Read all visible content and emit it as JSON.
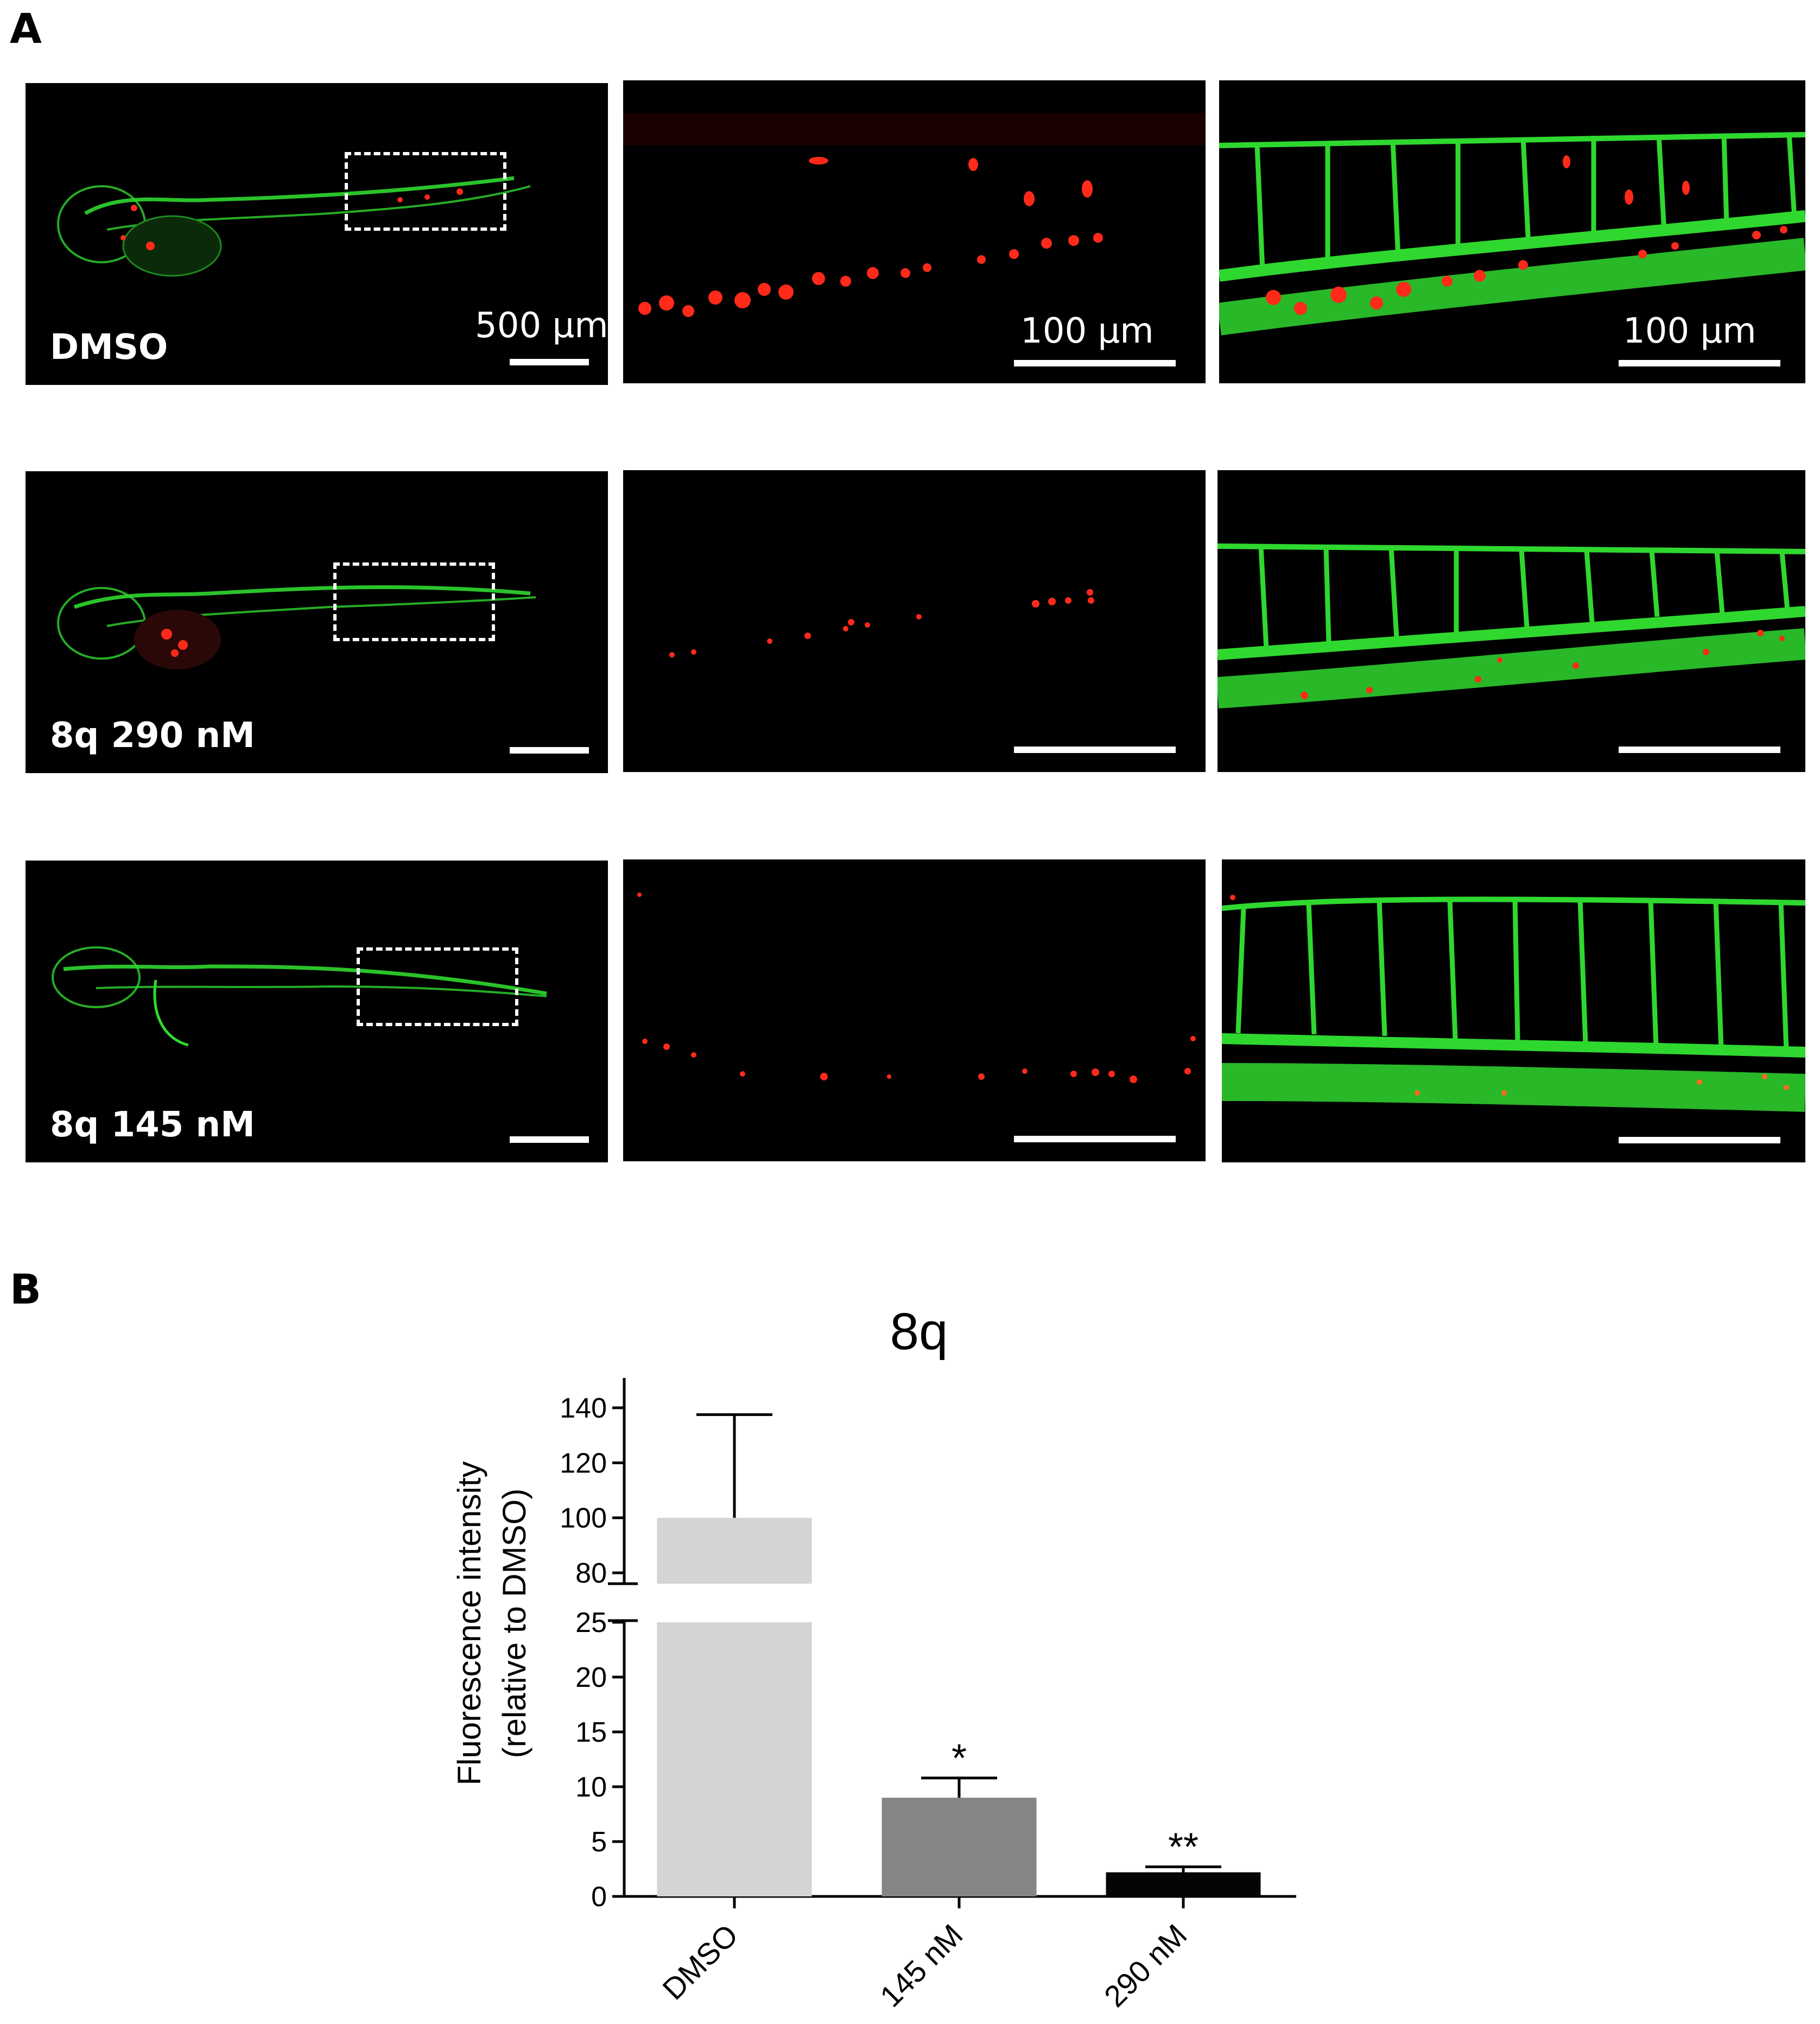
{
  "figure": {
    "panel_a_letter": "A",
    "panel_b_letter": "B",
    "scale_labels": {
      "whole_larva": "500 μm",
      "tail_zoom": "100 μm",
      "vessel_zoom": "100 μm"
    },
    "rows": [
      {
        "label": "DMSO",
        "signal": "high"
      },
      {
        "label": "8q 290 nM",
        "signal": "medium"
      },
      {
        "label": "8q 145 nM",
        "signal": "low"
      }
    ],
    "colors": {
      "vasculature": "#2fd82f",
      "tumor_cells": "#ff2a1a",
      "background": "#000000"
    }
  },
  "chart_data": {
    "type": "bar",
    "title": "8q",
    "ylabel_line1": "Fluorescence intensity",
    "ylabel_line2": "(relative to DMSO)",
    "categories": [
      "DMSO",
      "145 nM",
      "290 nM"
    ],
    "values": [
      100,
      9,
      2.2
    ],
    "error_upper": [
      137.5,
      10.8,
      2.7
    ],
    "significance": [
      "",
      "*",
      "**"
    ],
    "bar_colors": [
      "#d4d4d4",
      "#858585",
      "#050505"
    ],
    "yaxis": {
      "broken": true,
      "lower_range": [
        0,
        25
      ],
      "lower_ticks": [
        0,
        5,
        10,
        15,
        20,
        25
      ],
      "upper_range": [
        80,
        140
      ],
      "upper_ticks": [
        80,
        100,
        120,
        140
      ]
    },
    "grid": false
  }
}
